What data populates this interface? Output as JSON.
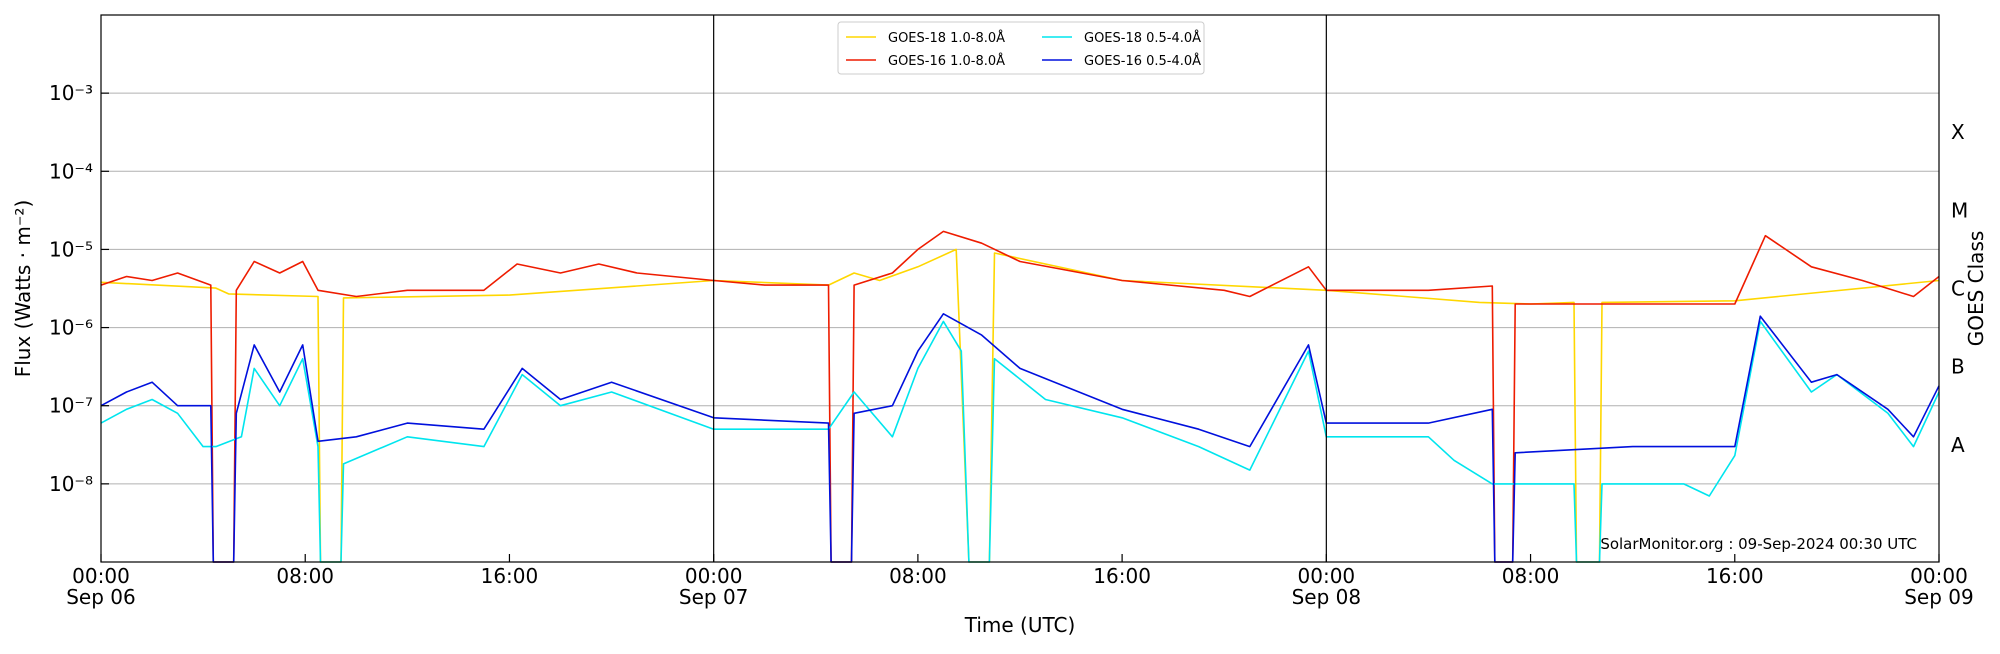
{
  "chart_data": {
    "type": "line",
    "title": "",
    "xlabel": "Time (UTC)",
    "ylabel": "Flux (Watts · m⁻²)",
    "y2label": "GOES Class",
    "yscale": "log",
    "ylim": [
      1e-09,
      0.01
    ],
    "xlim_hours": [
      0,
      72
    ],
    "grid": true,
    "legend_position": "top-center",
    "y_ticks": [
      {
        "value": 1e-08,
        "label": "10⁻⁸"
      },
      {
        "value": 1e-07,
        "label": "10⁻⁷"
      },
      {
        "value": 1e-06,
        "label": "10⁻⁶"
      },
      {
        "value": 1e-05,
        "label": "10⁻⁵"
      },
      {
        "value": 0.0001,
        "label": "10⁻⁴"
      },
      {
        "value": 0.001,
        "label": "10⁻³"
      }
    ],
    "class_ticks": [
      {
        "value": 3.16e-08,
        "label": "A"
      },
      {
        "value": 3.16e-07,
        "label": "B"
      },
      {
        "value": 3.16e-06,
        "label": "C"
      },
      {
        "value": 3.16e-05,
        "label": "M"
      },
      {
        "value": 0.000316,
        "label": "X"
      }
    ],
    "x_ticks": [
      {
        "hour": 0,
        "label": "00:00",
        "sublabel": "Sep 06"
      },
      {
        "hour": 8,
        "label": "08:00",
        "sublabel": ""
      },
      {
        "hour": 16,
        "label": "16:00",
        "sublabel": ""
      },
      {
        "hour": 24,
        "label": "00:00",
        "sublabel": "Sep 07"
      },
      {
        "hour": 32,
        "label": "08:00",
        "sublabel": ""
      },
      {
        "hour": 40,
        "label": "16:00",
        "sublabel": ""
      },
      {
        "hour": 48,
        "label": "00:00",
        "sublabel": "Sep 08"
      },
      {
        "hour": 56,
        "label": "08:00",
        "sublabel": ""
      },
      {
        "hour": 64,
        "label": "16:00",
        "sublabel": ""
      },
      {
        "hour": 72,
        "label": "00:00",
        "sublabel": "Sep 09"
      }
    ],
    "day_boundaries_hours": [
      24,
      48
    ],
    "series": [
      {
        "name": "GOES-18 1.0-8.0Å",
        "color": "#ffd700",
        "points": [
          [
            0,
            3.8e-06
          ],
          [
            4.5,
            3.2e-06
          ],
          [
            5,
            2.7e-06
          ],
          [
            8.5,
            2.5e-06
          ],
          [
            8.6,
            1e-09
          ],
          [
            9.4,
            1e-09
          ],
          [
            9.5,
            2.4e-06
          ],
          [
            16,
            2.6e-06
          ],
          [
            24,
            4e-06
          ],
          [
            28.5,
            3.5e-06
          ],
          [
            29.5,
            5e-06
          ],
          [
            30.5,
            4e-06
          ],
          [
            32,
            6e-06
          ],
          [
            33.5,
            1e-05
          ],
          [
            34,
            1e-09
          ],
          [
            34.8,
            1e-09
          ],
          [
            35,
            9e-06
          ],
          [
            40,
            4e-06
          ],
          [
            48,
            3e-06
          ],
          [
            54,
            2.1e-06
          ],
          [
            56,
            2e-06
          ],
          [
            57.7,
            2.1e-06
          ],
          [
            57.8,
            1e-09
          ],
          [
            58.7,
            1e-09
          ],
          [
            58.8,
            2.1e-06
          ],
          [
            64,
            2.2e-06
          ],
          [
            72,
            4e-06
          ]
        ]
      },
      {
        "name": "GOES-16 1.0-8.0Å",
        "color": "#ee1c00",
        "points": [
          [
            0,
            3.5e-06
          ],
          [
            1,
            4.5e-06
          ],
          [
            2,
            4e-06
          ],
          [
            3,
            5e-06
          ],
          [
            4.3,
            3.5e-06
          ],
          [
            4.4,
            1e-09
          ],
          [
            5.2,
            1e-09
          ],
          [
            5.3,
            3e-06
          ],
          [
            6,
            7e-06
          ],
          [
            7,
            5e-06
          ],
          [
            7.9,
            7e-06
          ],
          [
            8.5,
            3e-06
          ],
          [
            10,
            2.5e-06
          ],
          [
            12,
            3e-06
          ],
          [
            15,
            3e-06
          ],
          [
            16.3,
            6.5e-06
          ],
          [
            18,
            5e-06
          ],
          [
            19.5,
            6.5e-06
          ],
          [
            21,
            5e-06
          ],
          [
            24,
            4e-06
          ],
          [
            26,
            3.5e-06
          ],
          [
            28.5,
            3.5e-06
          ],
          [
            28.6,
            1e-09
          ],
          [
            29.4,
            1e-09
          ],
          [
            29.5,
            3.5e-06
          ],
          [
            31,
            5e-06
          ],
          [
            32,
            1e-05
          ],
          [
            33,
            1.7e-05
          ],
          [
            34.5,
            1.2e-05
          ],
          [
            36,
            7e-06
          ],
          [
            40,
            4e-06
          ],
          [
            44,
            3e-06
          ],
          [
            45,
            2.5e-06
          ],
          [
            47.3,
            6e-06
          ],
          [
            48,
            3e-06
          ],
          [
            52,
            3e-06
          ],
          [
            54.5,
            3.4e-06
          ],
          [
            54.6,
            1e-09
          ],
          [
            55.3,
            1e-09
          ],
          [
            55.4,
            2e-06
          ],
          [
            60,
            2e-06
          ],
          [
            64,
            2e-06
          ],
          [
            65.2,
            1.5e-05
          ],
          [
            67,
            6e-06
          ],
          [
            69,
            4e-06
          ],
          [
            71,
            2.5e-06
          ],
          [
            72,
            4.5e-06
          ]
        ]
      },
      {
        "name": "GOES-18 0.5-4.0Å",
        "color": "#00e5ee",
        "points": [
          [
            0,
            6e-08
          ],
          [
            1,
            9e-08
          ],
          [
            2,
            1.2e-07
          ],
          [
            3,
            8e-08
          ],
          [
            4,
            3e-08
          ],
          [
            4.5,
            3e-08
          ],
          [
            5.5,
            4e-08
          ],
          [
            6,
            3e-07
          ],
          [
            7,
            1e-07
          ],
          [
            7.9,
            4e-07
          ],
          [
            8.5,
            3e-08
          ],
          [
            8.6,
            1e-09
          ],
          [
            9.4,
            1e-09
          ],
          [
            9.5,
            1.8e-08
          ],
          [
            12,
            4e-08
          ],
          [
            15,
            3e-08
          ],
          [
            16.5,
            2.5e-07
          ],
          [
            18,
            1e-07
          ],
          [
            20,
            1.5e-07
          ],
          [
            24,
            5e-08
          ],
          [
            28.5,
            5e-08
          ],
          [
            29.5,
            1.5e-07
          ],
          [
            31,
            4e-08
          ],
          [
            32,
            3e-07
          ],
          [
            33,
            1.2e-06
          ],
          [
            33.7,
            5e-07
          ],
          [
            34,
            1e-09
          ],
          [
            34.8,
            1e-09
          ],
          [
            35,
            4e-07
          ],
          [
            37,
            1.2e-07
          ],
          [
            40,
            7e-08
          ],
          [
            43,
            3e-08
          ],
          [
            45,
            1.5e-08
          ],
          [
            47.3,
            5e-07
          ],
          [
            48,
            4e-08
          ],
          [
            52,
            4e-08
          ],
          [
            53,
            2e-08
          ],
          [
            54.5,
            1e-08
          ],
          [
            57.7,
            1e-08
          ],
          [
            57.8,
            1e-09
          ],
          [
            58.7,
            1e-09
          ],
          [
            58.8,
            1e-08
          ],
          [
            62,
            1e-08
          ],
          [
            63,
            7e-09
          ],
          [
            64,
            2.3e-08
          ],
          [
            65,
            1.2e-06
          ],
          [
            67,
            1.5e-07
          ],
          [
            68,
            2.5e-07
          ],
          [
            70,
            8e-08
          ],
          [
            71,
            3e-08
          ],
          [
            72,
            1.5e-07
          ]
        ]
      },
      {
        "name": "GOES-16 0.5-4.0Å",
        "color": "#0010dd",
        "points": [
          [
            0,
            1e-07
          ],
          [
            1,
            1.5e-07
          ],
          [
            2,
            2e-07
          ],
          [
            3,
            1e-07
          ],
          [
            4.3,
            1e-07
          ],
          [
            4.4,
            1e-09
          ],
          [
            5.2,
            1e-09
          ],
          [
            5.3,
            8e-08
          ],
          [
            6,
            6e-07
          ],
          [
            7,
            1.5e-07
          ],
          [
            7.9,
            6e-07
          ],
          [
            8.5,
            3.5e-08
          ],
          [
            10,
            4e-08
          ],
          [
            12,
            6e-08
          ],
          [
            15,
            5e-08
          ],
          [
            16.5,
            3e-07
          ],
          [
            18,
            1.2e-07
          ],
          [
            20,
            2e-07
          ],
          [
            24,
            7e-08
          ],
          [
            28.5,
            6e-08
          ],
          [
            28.6,
            1e-09
          ],
          [
            29.4,
            1e-09
          ],
          [
            29.5,
            8e-08
          ],
          [
            31,
            1e-07
          ],
          [
            32,
            5e-07
          ],
          [
            33,
            1.5e-06
          ],
          [
            34.5,
            8e-07
          ],
          [
            36,
            3e-07
          ],
          [
            40,
            9e-08
          ],
          [
            43,
            5e-08
          ],
          [
            45,
            3e-08
          ],
          [
            47.3,
            6e-07
          ],
          [
            48,
            6e-08
          ],
          [
            52,
            6e-08
          ],
          [
            54.5,
            9e-08
          ],
          [
            54.6,
            1e-09
          ],
          [
            55.3,
            1e-09
          ],
          [
            55.4,
            2.5e-08
          ],
          [
            60,
            3e-08
          ],
          [
            62,
            3e-08
          ],
          [
            64,
            3e-08
          ],
          [
            65,
            1.4e-06
          ],
          [
            67,
            2e-07
          ],
          [
            68,
            2.5e-07
          ],
          [
            70,
            9e-08
          ],
          [
            71,
            4e-08
          ],
          [
            72,
            1.8e-07
          ]
        ]
      }
    ],
    "annotation": "SolarMonitor.org : 09-Sep-2024 00:30 UTC"
  }
}
